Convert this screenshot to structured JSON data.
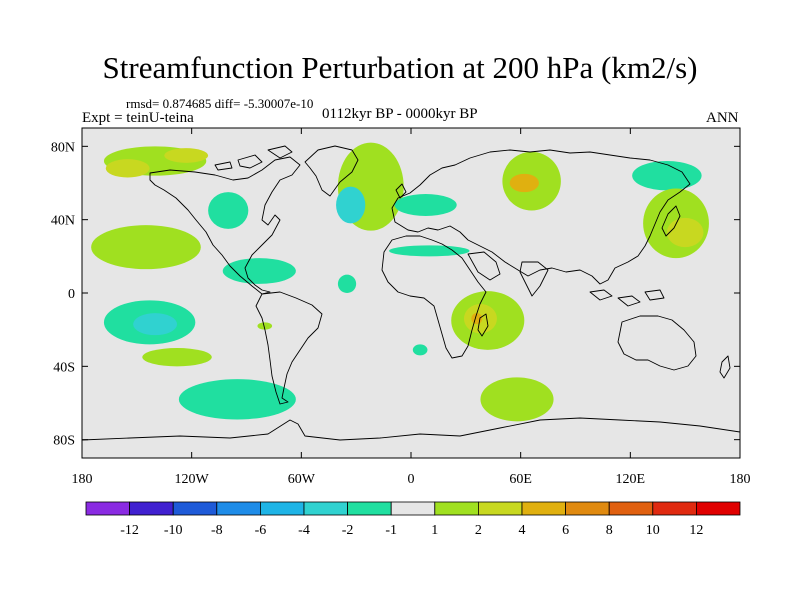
{
  "chart_data": {
    "type": "heatmap",
    "title": "Streamfunction Perturbation at 200 hPa (km2/s)",
    "stats": "rmsd= 0.874685 diff= -5.30007e-10",
    "experiment": "Expt = teinU-teina",
    "period": "0112kyr BP - 0000kyr BP",
    "season": "ANN",
    "xlim": [
      -180,
      180
    ],
    "ylim": [
      -90,
      90
    ],
    "x_ticks": [
      {
        "value": -180,
        "label": "180"
      },
      {
        "value": -120,
        "label": "120W"
      },
      {
        "value": -60,
        "label": "60W"
      },
      {
        "value": 0,
        "label": "0"
      },
      {
        "value": 60,
        "label": "60E"
      },
      {
        "value": 120,
        "label": "120E"
      },
      {
        "value": 180,
        "label": "180"
      }
    ],
    "y_ticks": [
      {
        "value": 80,
        "label": "80N"
      },
      {
        "value": 40,
        "label": "40N"
      },
      {
        "value": 0,
        "label": "0"
      },
      {
        "value": -40,
        "label": "40S"
      },
      {
        "value": -80,
        "label": "80S"
      }
    ],
    "colorbar": {
      "colors": [
        "#8a2be2",
        "#4020d0",
        "#1e5ad8",
        "#1e8ce8",
        "#1eb4e6",
        "#30d2d0",
        "#20dfa0",
        "#e6e6e6",
        "#a0e020",
        "#c8d820",
        "#e0b010",
        "#e08a10",
        "#e06010",
        "#e02a10",
        "#e00000"
      ],
      "labels": [
        "-12",
        "-10",
        "-8",
        "-6",
        "-4",
        "-2",
        "-1",
        "1",
        "2",
        "4",
        "6",
        "8",
        "10",
        "12"
      ]
    },
    "anomalies": [
      {
        "lon": -140,
        "lat": 72,
        "rlon": 28,
        "rlat": 8,
        "level": 1
      },
      {
        "lon": -155,
        "lat": 68,
        "rlon": 12,
        "rlat": 5,
        "level": 2
      },
      {
        "lon": -123,
        "lat": 75,
        "rlon": 12,
        "rlat": 4,
        "level": 2
      },
      {
        "lon": -22,
        "lat": 58,
        "rlon": 18,
        "rlat": 24,
        "level": 1
      },
      {
        "lon": -33,
        "lat": 48,
        "rlon": 8,
        "rlat": 10,
        "level": -2
      },
      {
        "lon": 66,
        "lat": 61,
        "rlon": 16,
        "rlat": 16,
        "level": 1
      },
      {
        "lon": 62,
        "lat": 60,
        "rlon": 8,
        "rlat": 5,
        "level": 3
      },
      {
        "lon": 140,
        "lat": 64,
        "rlon": 19,
        "rlat": 8,
        "level": -1
      },
      {
        "lon": 145,
        "lat": 38,
        "rlon": 18,
        "rlat": 19,
        "level": 1
      },
      {
        "lon": 150,
        "lat": 33,
        "rlon": 10,
        "rlat": 8,
        "level": 2
      },
      {
        "lon": -100,
        "lat": 45,
        "rlon": 11,
        "rlat": 10,
        "level": -1
      },
      {
        "lon": -145,
        "lat": 25,
        "rlon": 30,
        "rlat": 12,
        "level": 1
      },
      {
        "lon": -83,
        "lat": 12,
        "rlon": 20,
        "rlat": 7,
        "level": -1
      },
      {
        "lon": -35,
        "lat": 5,
        "rlon": 5,
        "rlat": 5,
        "level": -1
      },
      {
        "lon": 8,
        "lat": 48,
        "rlon": 17,
        "rlat": 6,
        "level": -1
      },
      {
        "lon": 10,
        "lat": 23,
        "rlon": 22,
        "rlat": 3,
        "level": -1
      },
      {
        "lon": -143,
        "lat": -16,
        "rlon": 25,
        "rlat": 12,
        "level": -1
      },
      {
        "lon": -140,
        "lat": -17,
        "rlon": 12,
        "rlat": 6,
        "level": -2
      },
      {
        "lon": -128,
        "lat": -35,
        "rlon": 19,
        "rlat": 5,
        "level": 1
      },
      {
        "lon": -95,
        "lat": -58,
        "rlon": 32,
        "rlat": 11,
        "level": -1
      },
      {
        "lon": -80,
        "lat": -18,
        "rlon": 4,
        "rlat": 2,
        "level": 1
      },
      {
        "lon": 5,
        "lat": -31,
        "rlon": 4,
        "rlat": 3,
        "level": -1
      },
      {
        "lon": 42,
        "lat": -15,
        "rlon": 20,
        "rlat": 16,
        "level": 1
      },
      {
        "lon": 38,
        "lat": -14,
        "rlon": 9,
        "rlat": 8,
        "level": 2
      },
      {
        "lon": 36,
        "lat": -14,
        "rlon": 3,
        "rlat": 3,
        "level": 3
      },
      {
        "lon": 58,
        "lat": -58,
        "rlon": 20,
        "rlat": 12,
        "level": 1
      }
    ]
  }
}
